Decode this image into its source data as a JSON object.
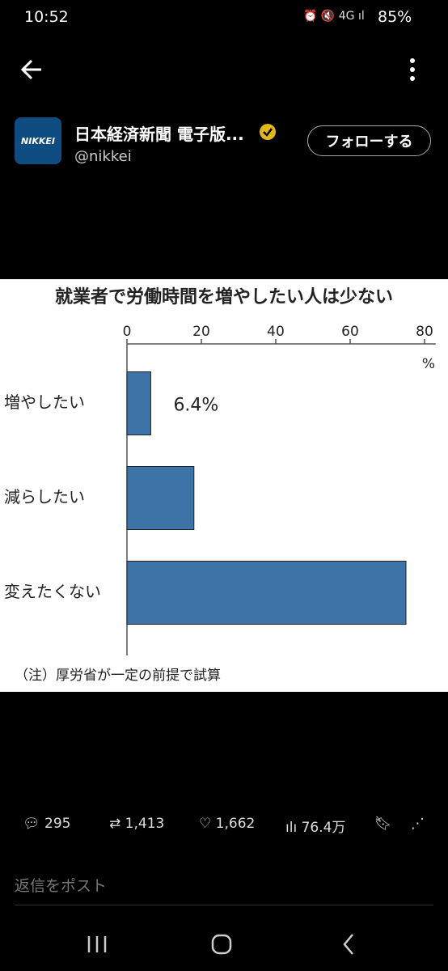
{
  "status_bar": {
    "time": "10:52",
    "battery": "85%"
  },
  "author": {
    "avatar": "NIKKEI",
    "name": "日本経済新聞 電子版...",
    "handle": "@nikkei",
    "follow_button": "フォローする"
  },
  "chart_data": {
    "type": "bar",
    "orientation": "horizontal",
    "title": "就業者で労働時間を増やしたい人は少ない",
    "categories": [
      "増やしたい",
      "減らしたい",
      "変えたくない"
    ],
    "values": [
      6.4,
      18,
      75
    ],
    "value_labels": [
      "6.4%",
      null,
      null
    ],
    "color": "#3d74a7",
    "xlim": [
      0,
      83
    ],
    "xticks": [
      0,
      20,
      40,
      60,
      80
    ],
    "x_unit": "%",
    "note": "（注）厚労省が一定の前提で試算"
  },
  "actions": {
    "replies": "295",
    "reposts": "1,413",
    "likes": "1,662",
    "views": "76.4万"
  },
  "reply_placeholder": "返信をポスト"
}
